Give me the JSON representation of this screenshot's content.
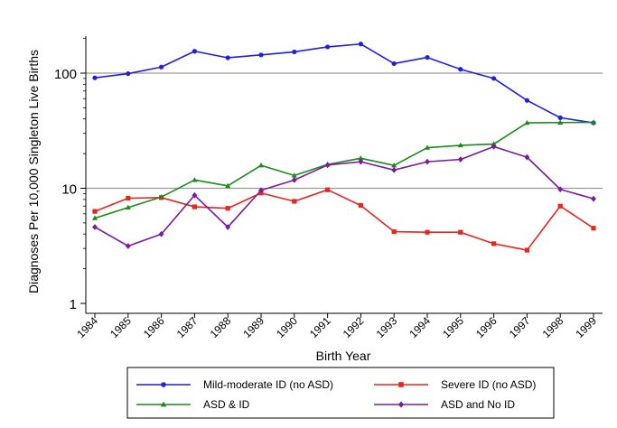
{
  "chart_data": {
    "type": "line",
    "title": "",
    "xlabel": "Birth Year",
    "ylabel": "Diagnoses Per 10,000 Singleton Live Births",
    "yscale": "log",
    "ylim": [
      1,
      200
    ],
    "yticks": [
      1,
      10,
      100
    ],
    "ytick_labels": [
      "1",
      "10",
      "100"
    ],
    "grid": "horizontal at y ticks",
    "legend_position": "bottom",
    "categories": [
      "1984",
      "1985",
      "1986",
      "1987",
      "1988",
      "1989",
      "1990",
      "1991",
      "1992",
      "1993",
      "1994",
      "1995",
      "1996",
      "1997",
      "1998",
      "1999"
    ],
    "series": [
      {
        "name": "Mild-moderate ID (no ASD)",
        "color": "#1f1fe6",
        "marker": "circle",
        "values": [
          91,
          99,
          113,
          155,
          136,
          144,
          153,
          169,
          179,
          121,
          137,
          108,
          90,
          58,
          41,
          37
        ]
      },
      {
        "name": "Severe ID (no ASD)",
        "color": "#e6261f",
        "marker": "square",
        "values": [
          6.3,
          8.2,
          8.3,
          6.9,
          6.7,
          9.1,
          7.7,
          9.7,
          7.1,
          4.2,
          4.15,
          4.15,
          3.3,
          2.9,
          7.0,
          4.5
        ]
      },
      {
        "name": "ASD & ID",
        "color": "#1a8a1a",
        "marker": "triangle",
        "values": [
          5.5,
          6.8,
          8.4,
          11.8,
          10.5,
          15.8,
          12.9,
          16.1,
          18.2,
          15.8,
          22.5,
          23.6,
          24.2,
          37,
          37.2,
          37.4
        ]
      },
      {
        "name": "ASD and No ID",
        "color": "#7a1aa0",
        "marker": "diamond",
        "values": [
          4.6,
          3.15,
          4.0,
          8.7,
          4.6,
          9.6,
          11.8,
          15.9,
          17.0,
          14.4,
          17.0,
          17.8,
          23.0,
          18.6,
          9.8,
          8.1
        ]
      }
    ]
  }
}
